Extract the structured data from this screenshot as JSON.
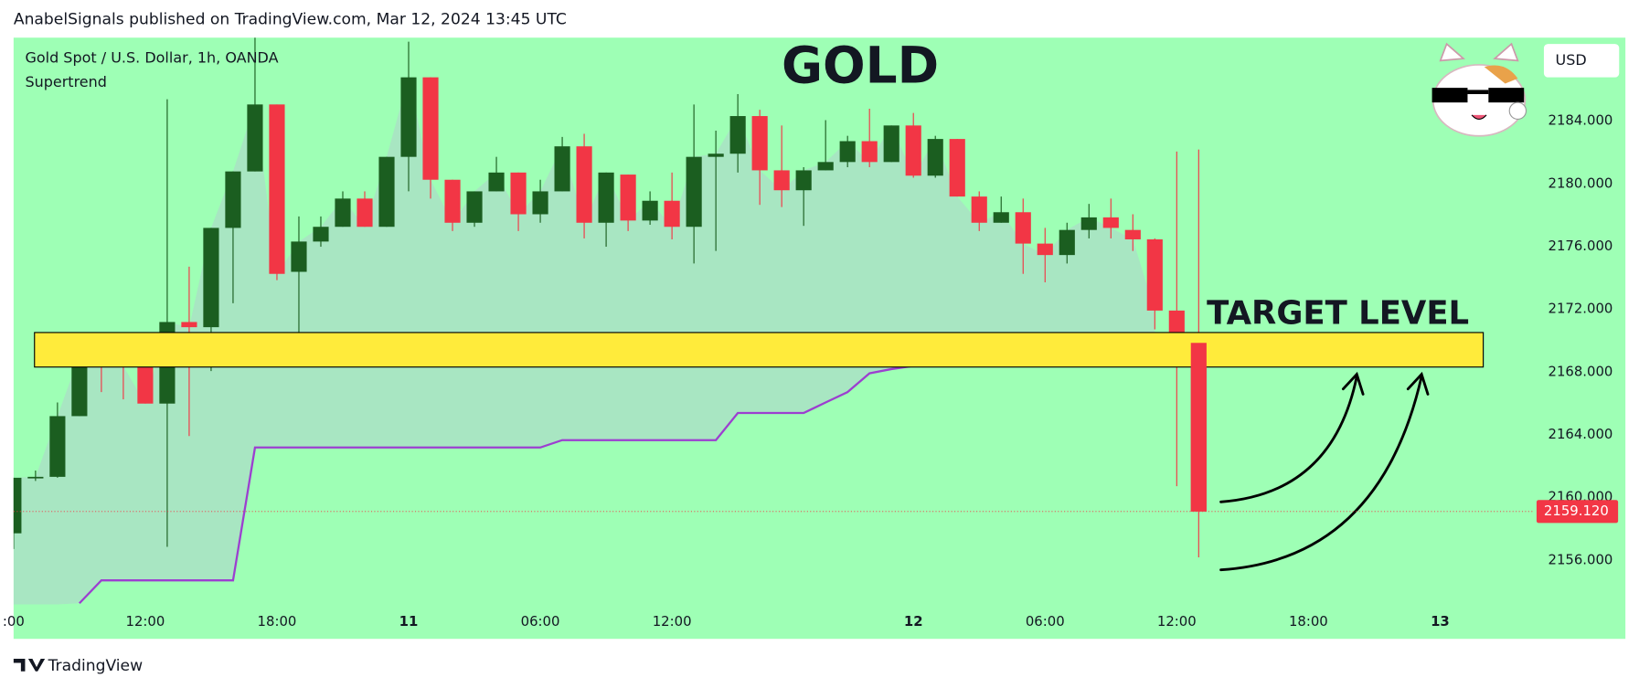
{
  "header": {
    "publisher": "AnabelSignals published on TradingView.com, Mar 12, 2024 13:45 UTC"
  },
  "footer": {
    "brand": "TradingView"
  },
  "chart_data": {
    "type": "candlestick",
    "title": "GOLD",
    "symbol": "Gold Spot / U.S. Dollar, 1h, OANDA",
    "currency": "USD",
    "annotation": "TARGET LEVEL",
    "up_color": "#1b5e20",
    "down_color": "#f23645",
    "candles": {
      "open": [
        2157.73,
        2161.27,
        2161.33,
        2165.2,
        2169.07,
        2168.53,
        2168.4,
        2166,
        2171.2,
        2170.87,
        2177.2,
        2180.8,
        2185.07,
        2174.4,
        2176.33,
        2177.27,
        2179.07,
        2177.27,
        2181.73,
        2186.8,
        2180.27,
        2177.53,
        2179.53,
        2180.73,
        2178.07,
        2179.53,
        2182.4,
        2177.53,
        2180.6,
        2177.67,
        2178.93,
        2177.27,
        2181.73,
        2181.93,
        2184.33,
        2180.87,
        2179.6,
        2180.87,
        2181.4,
        2182.73,
        2181.4,
        2183.73,
        2180.53,
        2182.87,
        2179.2,
        2177.53,
        2178.2,
        2176.2,
        2175.47,
        2177.07,
        2177.87,
        2177.07,
        2176.47,
        2171.93,
        2169.87
      ],
      "high": [
        2161.27,
        2161.73,
        2166.07,
        2169.73,
        2170.4,
        2169.2,
        2169.2,
        2185.4,
        2174.73,
        2177.2,
        2180.8,
        2189.4,
        2185.07,
        2177.93,
        2177.93,
        2179.53,
        2179.53,
        2181.73,
        2189.07,
        2186.8,
        2180.27,
        2179.53,
        2181.73,
        2180.73,
        2180.27,
        2183,
        2183.2,
        2180.73,
        2180.6,
        2179.53,
        2180.73,
        2185.07,
        2183.4,
        2185.73,
        2184.73,
        2183.73,
        2181.07,
        2184.07,
        2183.07,
        2184.8,
        2183.73,
        2184.53,
        2183.07,
        2182.87,
        2179.53,
        2179.2,
        2179.07,
        2177.2,
        2177.53,
        2178.73,
        2179.07,
        2178.07,
        2176.53,
        2182.07,
        2182.2
      ],
      "low": [
        2156.73,
        2161.07,
        2161.27,
        2165.2,
        2166.73,
        2166.27,
        2166,
        2156.87,
        2163.93,
        2168.07,
        2172.4,
        2180.8,
        2173.87,
        2168.4,
        2176,
        2177.27,
        2177.27,
        2177.27,
        2179.53,
        2179.07,
        2177,
        2177.27,
        2179.53,
        2177,
        2177.53,
        2179.53,
        2176.53,
        2176,
        2177,
        2177.4,
        2176.47,
        2174.93,
        2175.73,
        2180.73,
        2178.67,
        2178.53,
        2177.33,
        2180.87,
        2181.07,
        2181.07,
        2181.4,
        2180.4,
        2180.4,
        2179.2,
        2177,
        2177.53,
        2174.27,
        2173.73,
        2174.93,
        2176.53,
        2176.53,
        2175.73,
        2170.73,
        2160.73,
        2156.2
      ],
      "close": [
        2161.27,
        2161.33,
        2165.2,
        2169.07,
        2168.53,
        2168.4,
        2166,
        2171.2,
        2170.87,
        2177.2,
        2180.8,
        2185.07,
        2174.27,
        2176.33,
        2177.27,
        2179.07,
        2177.27,
        2181.73,
        2186.8,
        2180.27,
        2177.53,
        2179.53,
        2180.73,
        2178.07,
        2179.53,
        2182.4,
        2177.53,
        2180.73,
        2177.67,
        2178.93,
        2177.27,
        2181.73,
        2181.93,
        2184.33,
        2180.87,
        2179.6,
        2180.87,
        2181.4,
        2182.73,
        2181.4,
        2183.73,
        2180.53,
        2182.87,
        2179.2,
        2177.53,
        2178.2,
        2176.2,
        2175.47,
        2177.07,
        2177.87,
        2177.2,
        2176.47,
        2171.93,
        2169.87,
        2159.12
      ]
    },
    "supertrend": {
      "name": "Supertrend",
      "color": "#9c3fd0",
      "values": [
        null,
        null,
        null,
        2153.27,
        2154.73,
        2154.73,
        2154.73,
        2154.73,
        2154.73,
        2154.73,
        2154.73,
        2163.2,
        2163.2,
        2163.2,
        2163.2,
        2163.2,
        2163.2,
        2163.2,
        2163.2,
        2163.2,
        2163.2,
        2163.2,
        2163.2,
        2163.2,
        2163.2,
        2163.67,
        2163.67,
        2163.67,
        2163.67,
        2163.67,
        2163.67,
        2163.67,
        2163.67,
        2165.4,
        2165.4,
        2165.4,
        2165.4,
        2166.07,
        2166.73,
        2167.93,
        2168.2,
        2168.4,
        2168.4,
        2168.4,
        2168.4,
        2168.4,
        2168.4,
        2168.4,
        2168.4,
        2168.4,
        2168.4,
        2168.4,
        2168.4,
        null,
        null
      ]
    },
    "zone": {
      "low": 2168.33,
      "high": 2170.53,
      "color": "#ffeb3b"
    },
    "price_line": {
      "value": 2159.12,
      "label": "2159.120",
      "color": "#f23645"
    },
    "xlim": [
      0,
      69.3
    ],
    "xticks": [
      {
        "value": 0,
        "label": ":00"
      },
      {
        "value": 6,
        "label": "12:00"
      },
      {
        "value": 12,
        "label": "18:00"
      },
      {
        "value": 18,
        "label": "11"
      },
      {
        "value": 24,
        "label": "06:00"
      },
      {
        "value": 30,
        "label": "12:00"
      },
      {
        "value": 41,
        "label": "12"
      },
      {
        "value": 47,
        "label": "06:00"
      },
      {
        "value": 53,
        "label": "12:00"
      },
      {
        "value": 59,
        "label": "18:00"
      },
      {
        "value": 65,
        "label": "13"
      }
    ],
    "ylim": [
      2153.2,
      2189.33
    ],
    "yticks": [
      {
        "value": 2156,
        "label": "2156.000"
      },
      {
        "value": 2160,
        "label": "2160.000"
      },
      {
        "value": 2164,
        "label": "2164.000"
      },
      {
        "value": 2168,
        "label": "2168.000"
      },
      {
        "value": 2172,
        "label": "2172.000"
      },
      {
        "value": 2176,
        "label": "2176.000"
      },
      {
        "value": 2180,
        "label": "2180.000"
      },
      {
        "value": 2184,
        "label": "2184.000"
      }
    ]
  }
}
